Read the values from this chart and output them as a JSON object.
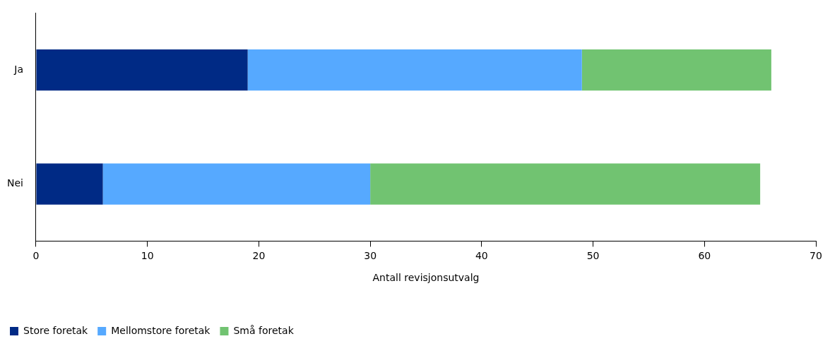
{
  "chart_data": {
    "type": "bar",
    "orientation": "horizontal",
    "stacked": true,
    "categories": [
      "Ja",
      "Nei"
    ],
    "series": [
      {
        "name": "Store foretak",
        "color": "#002a85",
        "values": [
          19,
          6
        ]
      },
      {
        "name": "Mellomstore foretak",
        "color": "#56a9ff",
        "values": [
          30,
          24
        ]
      },
      {
        "name": "Små foretak",
        "color": "#71c371",
        "values": [
          17,
          35
        ]
      }
    ],
    "xlabel": "Antall revisjonsutvalg",
    "xlim": [
      0,
      70
    ],
    "xticks": [
      0,
      10,
      20,
      30,
      40,
      50,
      60,
      70
    ],
    "grid": false,
    "legend": "bottom left"
  }
}
